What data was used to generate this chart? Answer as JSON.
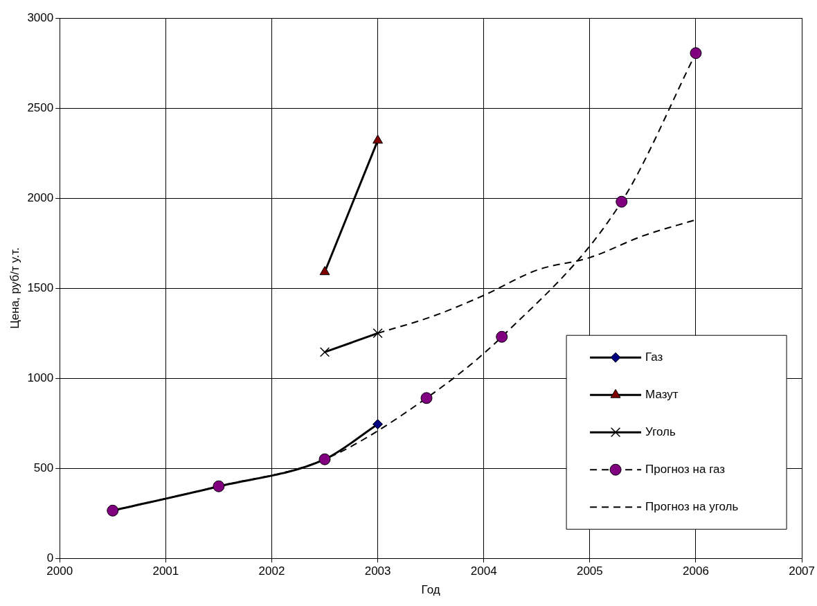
{
  "chart_data": {
    "type": "line",
    "xlabel": "Год",
    "ylabel": "Цена, руб/т у.т.",
    "xlim": [
      2000,
      2007
    ],
    "xticks": [
      2000,
      2001,
      2002,
      2003,
      2004,
      2005,
      2006,
      2007
    ],
    "ylim": [
      0,
      3000
    ],
    "yticks": [
      0,
      500,
      1000,
      1500,
      2000,
      2500,
      3000
    ],
    "grid": true,
    "legend": "bottom right",
    "series": [
      {
        "name": "Газ",
        "color": "#000080",
        "marker": "diamond",
        "line_style": "solid",
        "x": [
          2000.5,
          2001.5,
          2002.5,
          2003
        ],
        "values": [
          265,
          400,
          550,
          745
        ]
      },
      {
        "name": "Мазут",
        "color": "#800000",
        "marker": "triangle",
        "line_style": "solid",
        "x": [
          2002.5,
          2003
        ],
        "values": [
          1590,
          2320
        ]
      },
      {
        "name": "Уголь",
        "color": "#000000",
        "marker": "cross",
        "line_style": "solid",
        "x": [
          2002.5,
          2003
        ],
        "values": [
          1145,
          1250
        ]
      },
      {
        "name": "Прогноз на газ",
        "color": "#800080",
        "marker": "circle",
        "line_style": "dashed",
        "x": [
          2000.5,
          2001.5,
          2002.5,
          2003.46,
          2004.17,
          2005.3,
          2006
        ],
        "values": [
          265,
          400,
          550,
          890,
          1230,
          1980,
          2805
        ]
      },
      {
        "name": "Прогноз на уголь",
        "color": "#000000",
        "marker": "none",
        "line_style": "dashed",
        "x": [
          2003,
          2003.5,
          2004,
          2004.5,
          2005,
          2005.5,
          2006
        ],
        "values": [
          1250,
          1340,
          1460,
          1600,
          1670,
          1790,
          1880
        ]
      }
    ]
  }
}
